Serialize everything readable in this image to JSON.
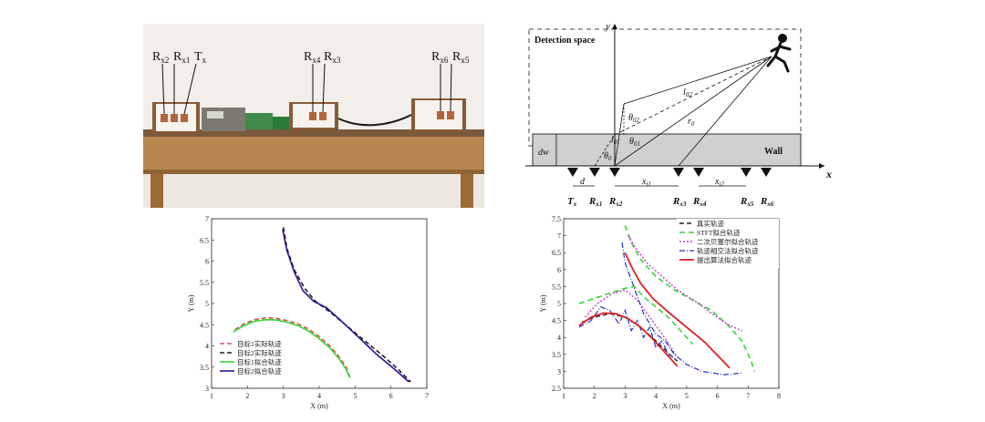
{
  "photo": {
    "labels": [
      {
        "id": "rx2",
        "text": "R",
        "sub": "x2"
      },
      {
        "id": "rx1",
        "text": "R",
        "sub": "x1"
      },
      {
        "id": "tx",
        "text": "T",
        "sub": "x"
      },
      {
        "id": "rx4",
        "text": "R",
        "sub": "x4"
      },
      {
        "id": "rx3",
        "text": "R",
        "sub": "x3"
      },
      {
        "id": "rx6",
        "text": "R",
        "sub": "x6"
      },
      {
        "id": "rx5",
        "text": "R",
        "sub": "x5"
      }
    ]
  },
  "diagram": {
    "space_label": "Detection space",
    "wall_label": "Wall",
    "y_axis": "y",
    "x_axis": "x",
    "dw": "dw",
    "d": "d",
    "xt1": "x",
    "xt1_sub": "t1",
    "xt2": "x",
    "xt2_sub": "t2",
    "l02": "l",
    "l02_sub": "02",
    "l01": "l",
    "l01_sub": "01",
    "r0": "r",
    "r0_sub": "0",
    "th02": "θ",
    "th02_sub": "02",
    "th01": "θ",
    "th01_sub": "01",
    "th0": "θ",
    "th0_sub": "0",
    "antennas": [
      {
        "t": "T",
        "s": "x"
      },
      {
        "t": "R",
        "s": "x1"
      },
      {
        "t": "R",
        "s": "x2"
      },
      {
        "t": "R",
        "s": "x3"
      },
      {
        "t": "R",
        "s": "x4"
      },
      {
        "t": "R",
        "s": "x5"
      },
      {
        "t": "R",
        "s": "x6"
      }
    ]
  },
  "chart_data": [
    {
      "type": "line",
      "xlabel": "X (m)",
      "ylabel": "Y (m)",
      "xlim": [
        1,
        7
      ],
      "ylim": [
        3,
        7
      ],
      "xticks": [
        "1",
        "2",
        "3",
        "4",
        "5",
        "6",
        "7"
      ],
      "yticks": [
        "3",
        "3.5",
        "4",
        "4.5",
        "5",
        "5.5",
        "6",
        "6.5",
        "7"
      ],
      "legend_position": "bottom-left",
      "series": [
        {
          "name": "目标1实际轨迹",
          "color": "#d9534f",
          "dash": "5,3",
          "width": 1.6,
          "points": [
            [
              1.65,
              4.38
            ],
            [
              1.9,
              4.52
            ],
            [
              2.2,
              4.62
            ],
            [
              2.5,
              4.66
            ],
            [
              2.8,
              4.65
            ],
            [
              3.1,
              4.6
            ],
            [
              3.4,
              4.52
            ],
            [
              3.7,
              4.4
            ],
            [
              4.0,
              4.22
            ],
            [
              4.3,
              4.0
            ],
            [
              4.55,
              3.75
            ],
            [
              4.75,
              3.5
            ],
            [
              4.85,
              3.28
            ]
          ]
        },
        {
          "name": "目标2实际轨迹",
          "color": "#222222",
          "dash": "5,3",
          "width": 1.6,
          "points": [
            [
              3.0,
              6.8
            ],
            [
              3.1,
              6.3
            ],
            [
              3.3,
              5.8
            ],
            [
              3.6,
              5.35
            ],
            [
              3.9,
              5.05
            ],
            [
              4.3,
              4.8
            ],
            [
              4.8,
              4.45
            ],
            [
              5.3,
              4.1
            ],
            [
              5.8,
              3.75
            ],
            [
              6.2,
              3.45
            ],
            [
              6.55,
              3.15
            ]
          ]
        },
        {
          "name": "目标1拟合轨迹",
          "color": "#33d633",
          "dash": "",
          "width": 1.6,
          "points": [
            [
              1.6,
              4.33
            ],
            [
              1.9,
              4.48
            ],
            [
              2.2,
              4.58
            ],
            [
              2.5,
              4.62
            ],
            [
              2.8,
              4.61
            ],
            [
              3.1,
              4.56
            ],
            [
              3.4,
              4.48
            ],
            [
              3.7,
              4.35
            ],
            [
              4.0,
              4.17
            ],
            [
              4.3,
              3.95
            ],
            [
              4.55,
              3.7
            ],
            [
              4.75,
              3.45
            ],
            [
              4.85,
              3.25
            ]
          ]
        },
        {
          "name": "目标2拟合轨迹",
          "color": "#1a1a9c",
          "dash": "",
          "width": 1.6,
          "points": [
            [
              2.98,
              6.75
            ],
            [
              3.1,
              6.25
            ],
            [
              3.3,
              5.75
            ],
            [
              3.55,
              5.3
            ],
            [
              3.85,
              5.05
            ],
            [
              4.2,
              4.9
            ],
            [
              4.6,
              4.6
            ],
            [
              5.1,
              4.2
            ],
            [
              5.6,
              3.8
            ],
            [
              6.1,
              3.45
            ],
            [
              6.5,
              3.15
            ]
          ]
        }
      ]
    },
    {
      "type": "line",
      "xlabel": "X (m)",
      "ylabel": "Y (m)",
      "xlim": [
        1,
        8
      ],
      "ylim": [
        2.5,
        7.5
      ],
      "xticks": [
        "1",
        "2",
        "3",
        "4",
        "5",
        "6",
        "7",
        "8"
      ],
      "yticks": [
        "2.5",
        "3",
        "3.5",
        "4",
        "4.5",
        "5",
        "5.5",
        "6",
        "6.5",
        "7",
        "7.5"
      ],
      "legend_position": "top-right",
      "series": [
        {
          "name": "真实轨迹",
          "color": "#222222",
          "dash": "5,3",
          "width": 1.4,
          "points": [
            [
              1.6,
              4.45
            ],
            [
              2.0,
              4.6
            ],
            [
              2.5,
              4.7
            ],
            [
              3.0,
              4.6
            ],
            [
              3.5,
              4.3
            ],
            [
              4.0,
              3.9
            ],
            [
              4.5,
              3.45
            ],
            [
              4.7,
              3.3
            ]
          ]
        },
        {
          "name": "STFT拟合轨迹",
          "color": "#33d633",
          "dash": "6,4",
          "width": 1.6,
          "points": [
            [
              1.5,
              5.0
            ],
            [
              2.0,
              5.15
            ],
            [
              2.5,
              5.3
            ],
            [
              3.0,
              5.45
            ],
            [
              3.3,
              5.5
            ],
            [
              3.6,
              5.2
            ],
            [
              4.0,
              4.9
            ],
            [
              4.4,
              4.6
            ],
            [
              4.7,
              4.3
            ],
            [
              5.0,
              4.0
            ],
            [
              5.2,
              3.8
            ]
          ]
        },
        {
          "name": "二次贝塞尔拟合轨迹",
          "color": "#cc33cc",
          "dash": "2,2",
          "width": 1.4,
          "points": [
            [
              1.7,
              4.6
            ],
            [
              2.1,
              5.0
            ],
            [
              2.6,
              5.3
            ],
            [
              3.0,
              5.4
            ],
            [
              3.4,
              5.1
            ],
            [
              3.8,
              4.6
            ],
            [
              4.2,
              4.1
            ],
            [
              4.5,
              3.7
            ],
            [
              4.7,
              3.4
            ]
          ]
        },
        {
          "name": "轨迹相交法拟合轨迹",
          "color": "#2233cc",
          "dash": "6,2,1,2",
          "width": 1.2,
          "points": [
            [
              1.5,
              4.3
            ],
            [
              1.9,
              4.5
            ],
            [
              2.2,
              4.9
            ],
            [
              2.5,
              4.8
            ],
            [
              2.8,
              4.4
            ],
            [
              3.0,
              4.8
            ],
            [
              3.2,
              4.2
            ],
            [
              3.4,
              4.5
            ],
            [
              3.6,
              4.0
            ],
            [
              3.8,
              4.3
            ],
            [
              4.0,
              3.7
            ],
            [
              4.2,
              3.9
            ],
            [
              4.4,
              3.5
            ],
            [
              4.6,
              3.4
            ]
          ]
        },
        {
          "name": "提出算法拟合轨迹",
          "color": "#dd2222",
          "dash": "",
          "width": 1.8,
          "points": [
            [
              1.5,
              4.35
            ],
            [
              1.9,
              4.6
            ],
            [
              2.3,
              4.72
            ],
            [
              2.7,
              4.7
            ],
            [
              3.1,
              4.55
            ],
            [
              3.5,
              4.3
            ],
            [
              3.9,
              3.95
            ],
            [
              4.2,
              3.65
            ],
            [
              4.5,
              3.35
            ],
            [
              4.7,
              3.15
            ]
          ]
        },
        {
          "name": "",
          "color": "#dd2222",
          "dash": "",
          "width": 1.8,
          "points": [
            [
              3.0,
              6.5
            ],
            [
              3.2,
              6.1
            ],
            [
              3.5,
              5.6
            ],
            [
              3.9,
              5.15
            ],
            [
              4.4,
              4.75
            ],
            [
              5.0,
              4.3
            ],
            [
              5.6,
              3.85
            ],
            [
              6.4,
              3.1
            ]
          ]
        },
        {
          "name": "",
          "color": "#33d633",
          "dash": "6,4",
          "width": 1.6,
          "points": [
            [
              3.0,
              7.3
            ],
            [
              3.2,
              6.8
            ],
            [
              3.5,
              6.3
            ],
            [
              4.0,
              5.8
            ],
            [
              4.6,
              5.4
            ],
            [
              5.2,
              5.1
            ],
            [
              5.8,
              4.8
            ],
            [
              6.3,
              4.4
            ],
            [
              6.8,
              3.9
            ],
            [
              7.1,
              3.3
            ],
            [
              7.2,
              3.0
            ]
          ]
        },
        {
          "name": "",
          "color": "#cc33cc",
          "dash": "2,2",
          "width": 1.4,
          "points": [
            [
              3.1,
              7.0
            ],
            [
              3.3,
              6.7
            ],
            [
              3.7,
              6.2
            ],
            [
              4.2,
              5.8
            ],
            [
              4.7,
              5.4
            ],
            [
              5.3,
              5.05
            ],
            [
              5.9,
              4.65
            ],
            [
              6.4,
              4.35
            ],
            [
              6.8,
              4.2
            ]
          ]
        },
        {
          "name": "",
          "color": "#2233cc",
          "dash": "6,2,1,2",
          "width": 1.2,
          "points": [
            [
              2.9,
              6.8
            ],
            [
              3.0,
              6.2
            ],
            [
              3.2,
              5.7
            ],
            [
              3.4,
              5.2
            ],
            [
              3.6,
              4.7
            ],
            [
              3.8,
              4.4
            ],
            [
              4.0,
              4.1
            ],
            [
              4.3,
              3.9
            ],
            [
              4.6,
              3.5
            ],
            [
              5.0,
              3.2
            ],
            [
              5.5,
              3.0
            ],
            [
              6.2,
              2.9
            ],
            [
              6.8,
              2.95
            ]
          ]
        }
      ]
    }
  ]
}
